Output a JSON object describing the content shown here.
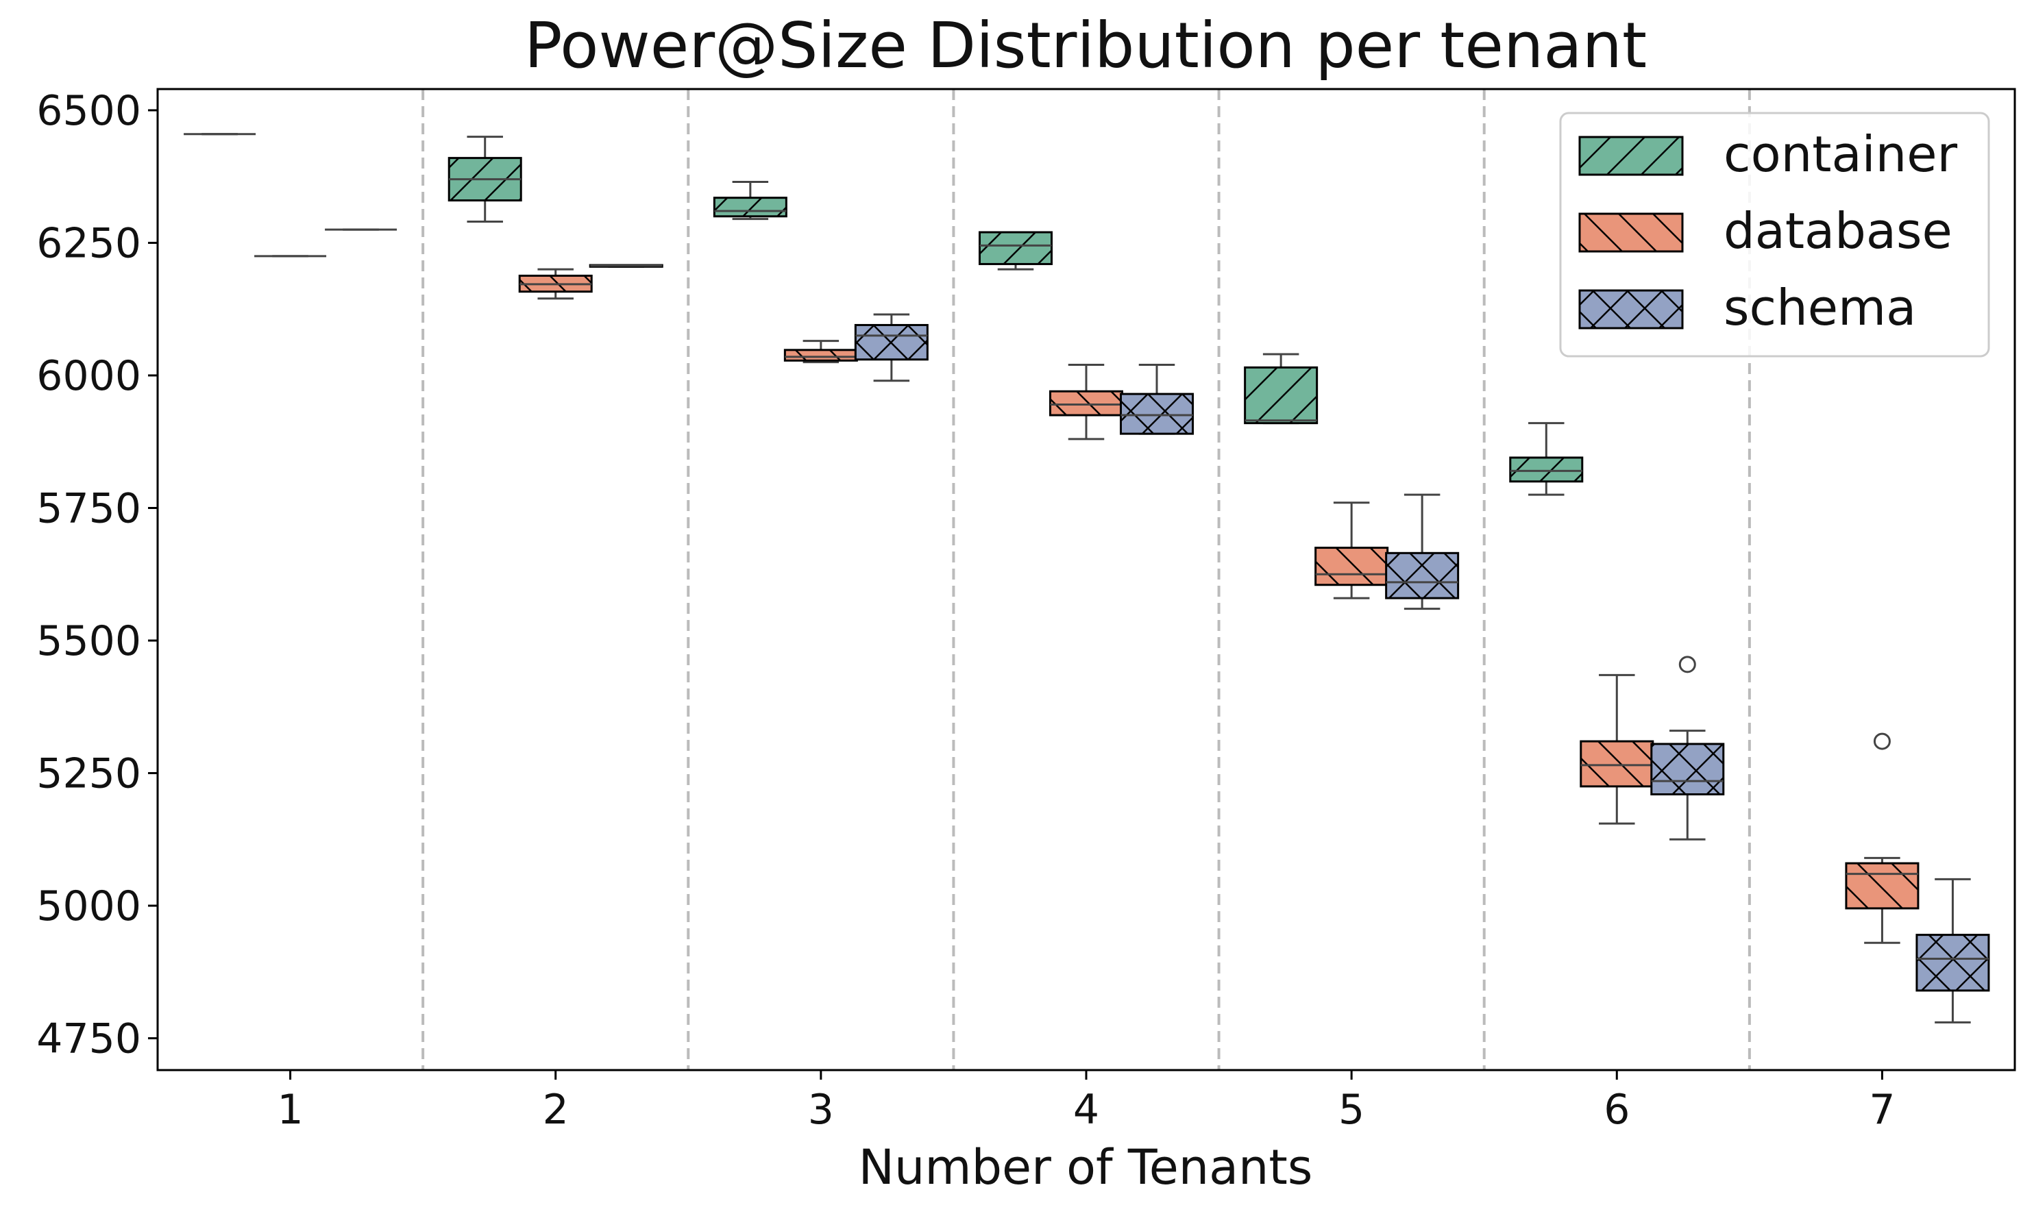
{
  "chart_data": {
    "type": "box",
    "title": "Power@Size Distribution per tenant",
    "xlabel": "Number of Tenants",
    "ylabel": "",
    "categories": [
      "1",
      "2",
      "3",
      "4",
      "5",
      "6",
      "7"
    ],
    "ylim": [
      4690,
      6540
    ],
    "yticks": [
      4750,
      5000,
      5250,
      5500,
      5750,
      6000,
      6250,
      6500
    ],
    "grid": "vertical dashed separators between groups",
    "legend_position": "top-right",
    "series": [
      {
        "name": "container",
        "color": "#72b59b",
        "hatch": "forward-slash",
        "boxes": [
          {
            "category": "1",
            "whislo": 6455,
            "q1": 6455,
            "med": 6455,
            "q3": 6455,
            "whishi": 6455,
            "fliers": []
          },
          {
            "category": "2",
            "whislo": 6290,
            "q1": 6330,
            "med": 6370,
            "q3": 6410,
            "whishi": 6450,
            "fliers": []
          },
          {
            "category": "3",
            "whislo": 6295,
            "q1": 6300,
            "med": 6310,
            "q3": 6335,
            "whishi": 6365,
            "fliers": []
          },
          {
            "category": "4",
            "whislo": 6200,
            "q1": 6210,
            "med": 6245,
            "q3": 6270,
            "whishi": 6270,
            "fliers": []
          },
          {
            "category": "5",
            "whislo": 5910,
            "q1": 5910,
            "med": 5915,
            "q3": 6015,
            "whishi": 6040,
            "fliers": []
          },
          {
            "category": "6",
            "whislo": 5775,
            "q1": 5800,
            "med": 5820,
            "q3": 5845,
            "whishi": 5910,
            "fliers": []
          },
          null
        ]
      },
      {
        "name": "database",
        "color": "#e9957a",
        "hatch": "back-slash",
        "boxes": [
          {
            "category": "1",
            "whislo": 6225,
            "q1": 6225,
            "med": 6225,
            "q3": 6225,
            "whishi": 6225,
            "fliers": []
          },
          {
            "category": "2",
            "whislo": 6145,
            "q1": 6158,
            "med": 6172,
            "q3": 6188,
            "whishi": 6200,
            "fliers": []
          },
          {
            "category": "3",
            "whislo": 6025,
            "q1": 6028,
            "med": 6035,
            "q3": 6048,
            "whishi": 6065,
            "fliers": []
          },
          {
            "category": "4",
            "whislo": 5880,
            "q1": 5925,
            "med": 5945,
            "q3": 5970,
            "whishi": 6020,
            "fliers": []
          },
          {
            "category": "5",
            "whislo": 5580,
            "q1": 5605,
            "med": 5625,
            "q3": 5675,
            "whishi": 5760,
            "fliers": []
          },
          {
            "category": "6",
            "whislo": 5155,
            "q1": 5225,
            "med": 5265,
            "q3": 5310,
            "whishi": 5435,
            "fliers": []
          },
          {
            "category": "7",
            "whislo": 4930,
            "q1": 4995,
            "med": 5060,
            "q3": 5080,
            "whishi": 5090,
            "fliers": [
              5310
            ]
          }
        ]
      },
      {
        "name": "schema",
        "color": "#93a2c4",
        "hatch": "cross",
        "boxes": [
          {
            "category": "1",
            "whislo": 6275,
            "q1": 6275,
            "med": 6275,
            "q3": 6275,
            "whishi": 6275,
            "fliers": []
          },
          {
            "category": "2",
            "whislo": 6205,
            "q1": 6205,
            "med": 6207,
            "q3": 6208,
            "whishi": 6208,
            "fliers": []
          },
          {
            "category": "3",
            "whislo": 5990,
            "q1": 6030,
            "med": 6075,
            "q3": 6095,
            "whishi": 6115,
            "fliers": []
          },
          {
            "category": "4",
            "whislo": 5890,
            "q1": 5890,
            "med": 5925,
            "q3": 5965,
            "whishi": 6020,
            "fliers": []
          },
          {
            "category": "5",
            "whislo": 5560,
            "q1": 5580,
            "med": 5610,
            "q3": 5665,
            "whishi": 5775,
            "fliers": []
          },
          {
            "category": "6",
            "whislo": 5125,
            "q1": 5210,
            "med": 5235,
            "q3": 5305,
            "whishi": 5330,
            "fliers": [
              5455
            ]
          },
          {
            "category": "7",
            "whislo": 4780,
            "q1": 4840,
            "med": 4900,
            "q3": 4945,
            "whishi": 5050,
            "fliers": []
          }
        ]
      }
    ]
  }
}
